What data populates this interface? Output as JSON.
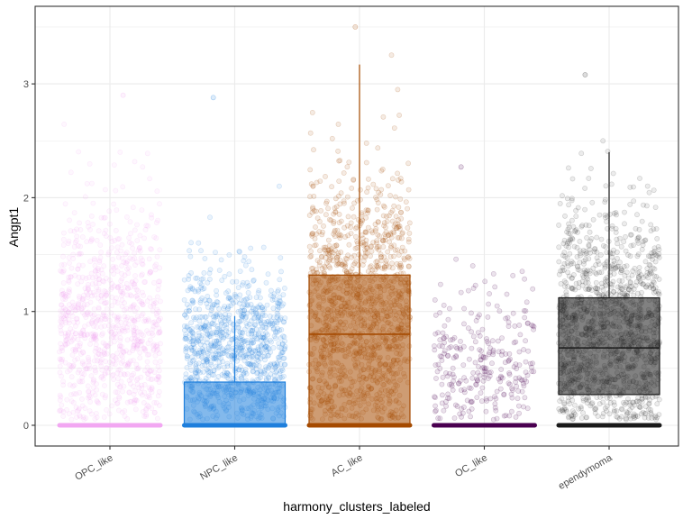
{
  "chart_data": {
    "type": "box",
    "xlabel": "harmony_clusters_labeled",
    "ylabel": "Angpt1",
    "ylim": [
      -0.15,
      3.6
    ],
    "yticks": [
      0,
      1,
      2,
      3
    ],
    "grid": true,
    "legend": "none",
    "overlay": "jittered points",
    "categories": [
      "OPC_like",
      "NPC_like",
      "AC_like",
      "OC_like",
      "ependymoma"
    ],
    "colors": [
      "#f2a7f2",
      "#1e7fdc",
      "#a54a00",
      "#4a0050",
      "#1a1a1a"
    ],
    "boxes": [
      {
        "name": "OPC_like",
        "min": 0,
        "q1": 0,
        "median": 0,
        "q3": 0,
        "max": 0,
        "points_max": 2.9
      },
      {
        "name": "NPC_like",
        "min": 0,
        "q1": 0,
        "median": 0,
        "q3": 0.38,
        "max": 0.96,
        "points_max": 2.88
      },
      {
        "name": "AC_like",
        "min": 0,
        "q1": 0,
        "median": 0.8,
        "q3": 1.32,
        "max": 3.17,
        "points_max": 3.5
      },
      {
        "name": "OC_like",
        "min": 0,
        "q1": 0,
        "median": 0,
        "q3": 0,
        "max": 0,
        "points_max": 2.27
      },
      {
        "name": "ependymoma",
        "min": 0,
        "q1": 0.27,
        "median": 0.68,
        "q3": 1.12,
        "max": 2.4,
        "points_max": 3.08
      }
    ]
  }
}
